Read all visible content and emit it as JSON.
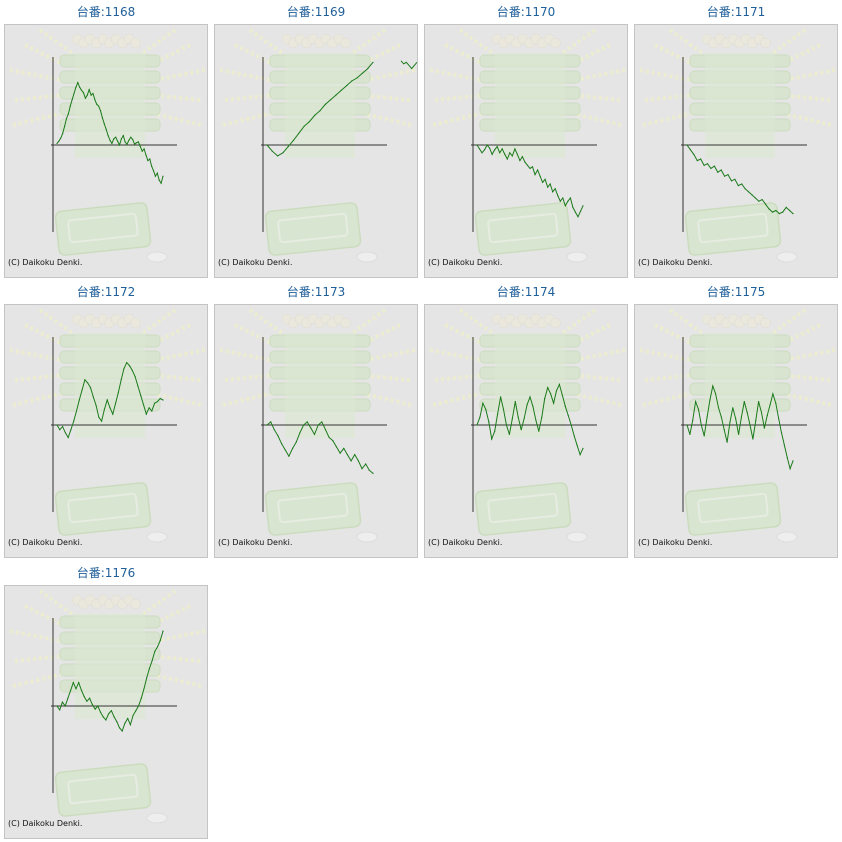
{
  "chart_data": [
    {
      "type": "line",
      "title": "台番:1168",
      "copyright": "(C) Daikoku Denki.",
      "values": [
        0.02,
        0.05,
        0.09,
        0.15,
        0.24,
        0.34,
        0.4,
        0.5,
        0.58,
        0.66,
        0.74,
        0.8,
        0.74,
        0.7,
        0.67,
        0.6,
        0.64,
        0.71,
        0.64,
        0.66,
        0.58,
        0.52,
        0.5,
        0.44,
        0.35,
        0.27,
        0.2,
        0.12,
        0.06,
        0.02,
        0.08,
        0.1,
        0.05,
        0.0,
        0.08,
        0.12,
        0.04,
        0.01,
        0.06,
        0.1,
        0.07,
        0.01,
        0.03,
        0.04,
        -0.02,
        -0.08,
        -0.05,
        -0.13,
        -0.2,
        -0.18,
        -0.27,
        -0.33,
        -0.4,
        -0.36,
        -0.45,
        -0.49,
        -0.4
      ]
    },
    {
      "type": "line",
      "title": "台番:1169",
      "copyright": "(C) Daikoku Denki.",
      "values": [
        0.0,
        -0.08,
        -0.14,
        -0.1,
        -0.02,
        0.06,
        0.15,
        0.24,
        0.3,
        0.38,
        0.44,
        0.52,
        0.58,
        0.64,
        0.7,
        0.76,
        0.82,
        0.86,
        0.92,
        0.98,
        1.06
      ],
      "tail_values": [
        1.08,
        1.04,
        1.06,
        1.02,
        0.98,
        1.02,
        1.06
      ]
    },
    {
      "type": "line",
      "title": "台番:1170",
      "copyright": "(C) Daikoku Denki.",
      "values": [
        0.0,
        -0.05,
        -0.1,
        -0.06,
        0.0,
        -0.04,
        -0.12,
        -0.06,
        -0.02,
        -0.1,
        -0.05,
        -0.12,
        -0.18,
        -0.1,
        -0.14,
        -0.05,
        -0.12,
        -0.2,
        -0.15,
        -0.22,
        -0.26,
        -0.3,
        -0.28,
        -0.38,
        -0.32,
        -0.4,
        -0.48,
        -0.44,
        -0.54,
        -0.5,
        -0.6,
        -0.56,
        -0.65,
        -0.72,
        -0.68,
        -0.78,
        -0.72,
        -0.68,
        -0.8,
        -0.86,
        -0.92,
        -0.85,
        -0.78
      ]
    },
    {
      "type": "line",
      "title": "台番:1171",
      "copyright": "(C) Daikoku Denki.",
      "values": [
        0.0,
        -0.06,
        -0.12,
        -0.2,
        -0.18,
        -0.26,
        -0.24,
        -0.3,
        -0.27,
        -0.35,
        -0.32,
        -0.4,
        -0.38,
        -0.46,
        -0.44,
        -0.52,
        -0.5,
        -0.56,
        -0.6,
        -0.64,
        -0.68,
        -0.72,
        -0.7,
        -0.76,
        -0.82,
        -0.86,
        -0.84,
        -0.88,
        -0.86,
        -0.8,
        -0.84,
        -0.88
      ]
    },
    {
      "type": "line",
      "title": "台番:1172",
      "copyright": "(C) Daikoku Denki.",
      "values": [
        0.0,
        -0.06,
        -0.02,
        -0.1,
        -0.16,
        -0.06,
        0.05,
        0.18,
        0.32,
        0.45,
        0.58,
        0.54,
        0.48,
        0.36,
        0.25,
        0.1,
        0.05,
        0.2,
        0.32,
        0.22,
        0.14,
        0.28,
        0.42,
        0.58,
        0.72,
        0.8,
        0.76,
        0.7,
        0.62,
        0.5,
        0.38,
        0.26,
        0.14,
        0.22,
        0.18,
        0.28,
        0.3,
        0.34,
        0.32
      ]
    },
    {
      "type": "line",
      "title": "台番:1173",
      "copyright": "(C) Daikoku Denki.",
      "values": [
        0.0,
        0.04,
        -0.06,
        -0.14,
        -0.24,
        -0.32,
        -0.4,
        -0.3,
        -0.22,
        -0.1,
        0.0,
        0.04,
        -0.04,
        -0.12,
        0.0,
        0.04,
        -0.06,
        -0.16,
        -0.2,
        -0.28,
        -0.36,
        -0.3,
        -0.38,
        -0.46,
        -0.38,
        -0.46,
        -0.56,
        -0.5,
        -0.58,
        -0.62
      ]
    },
    {
      "type": "line",
      "title": "台番:1174",
      "copyright": "(C) Daikoku Denki.",
      "values": [
        0.0,
        0.1,
        0.28,
        0.2,
        0.04,
        -0.18,
        -0.08,
        0.14,
        0.36,
        0.2,
        0.0,
        -0.12,
        0.08,
        0.3,
        0.1,
        -0.06,
        0.08,
        0.26,
        0.36,
        0.24,
        0.06,
        -0.08,
        0.1,
        0.34,
        0.48,
        0.4,
        0.28,
        0.44,
        0.52,
        0.38,
        0.24,
        0.12,
        0.0,
        -0.14,
        -0.26,
        -0.38,
        -0.3
      ]
    },
    {
      "type": "line",
      "title": "台番:1175",
      "copyright": "(C) Daikoku Denki.",
      "values": [
        0.0,
        -0.12,
        0.06,
        0.3,
        0.2,
        0.0,
        -0.14,
        0.1,
        0.32,
        0.5,
        0.4,
        0.22,
        0.1,
        -0.06,
        -0.22,
        0.04,
        0.22,
        0.08,
        -0.12,
        0.1,
        0.3,
        0.16,
        0.0,
        -0.18,
        0.06,
        0.3,
        0.16,
        -0.04,
        0.12,
        0.26,
        0.4,
        0.28,
        0.08,
        -0.1,
        -0.26,
        -0.42,
        -0.56,
        -0.46
      ]
    },
    {
      "type": "line",
      "title": "台番:1176",
      "copyright": "(C) Daikoku Denki.",
      "values": [
        0.0,
        -0.05,
        0.05,
        0.0,
        0.1,
        0.2,
        0.3,
        0.22,
        0.3,
        0.2,
        0.12,
        0.06,
        0.1,
        0.02,
        -0.04,
        0.0,
        -0.08,
        -0.14,
        -0.18,
        -0.1,
        -0.06,
        -0.14,
        -0.2,
        -0.28,
        -0.32,
        -0.22,
        -0.16,
        -0.24,
        -0.12,
        -0.06,
        0.0,
        0.1,
        0.22,
        0.36,
        0.48,
        0.58,
        0.7,
        0.76,
        0.84,
        0.96
      ]
    }
  ]
}
